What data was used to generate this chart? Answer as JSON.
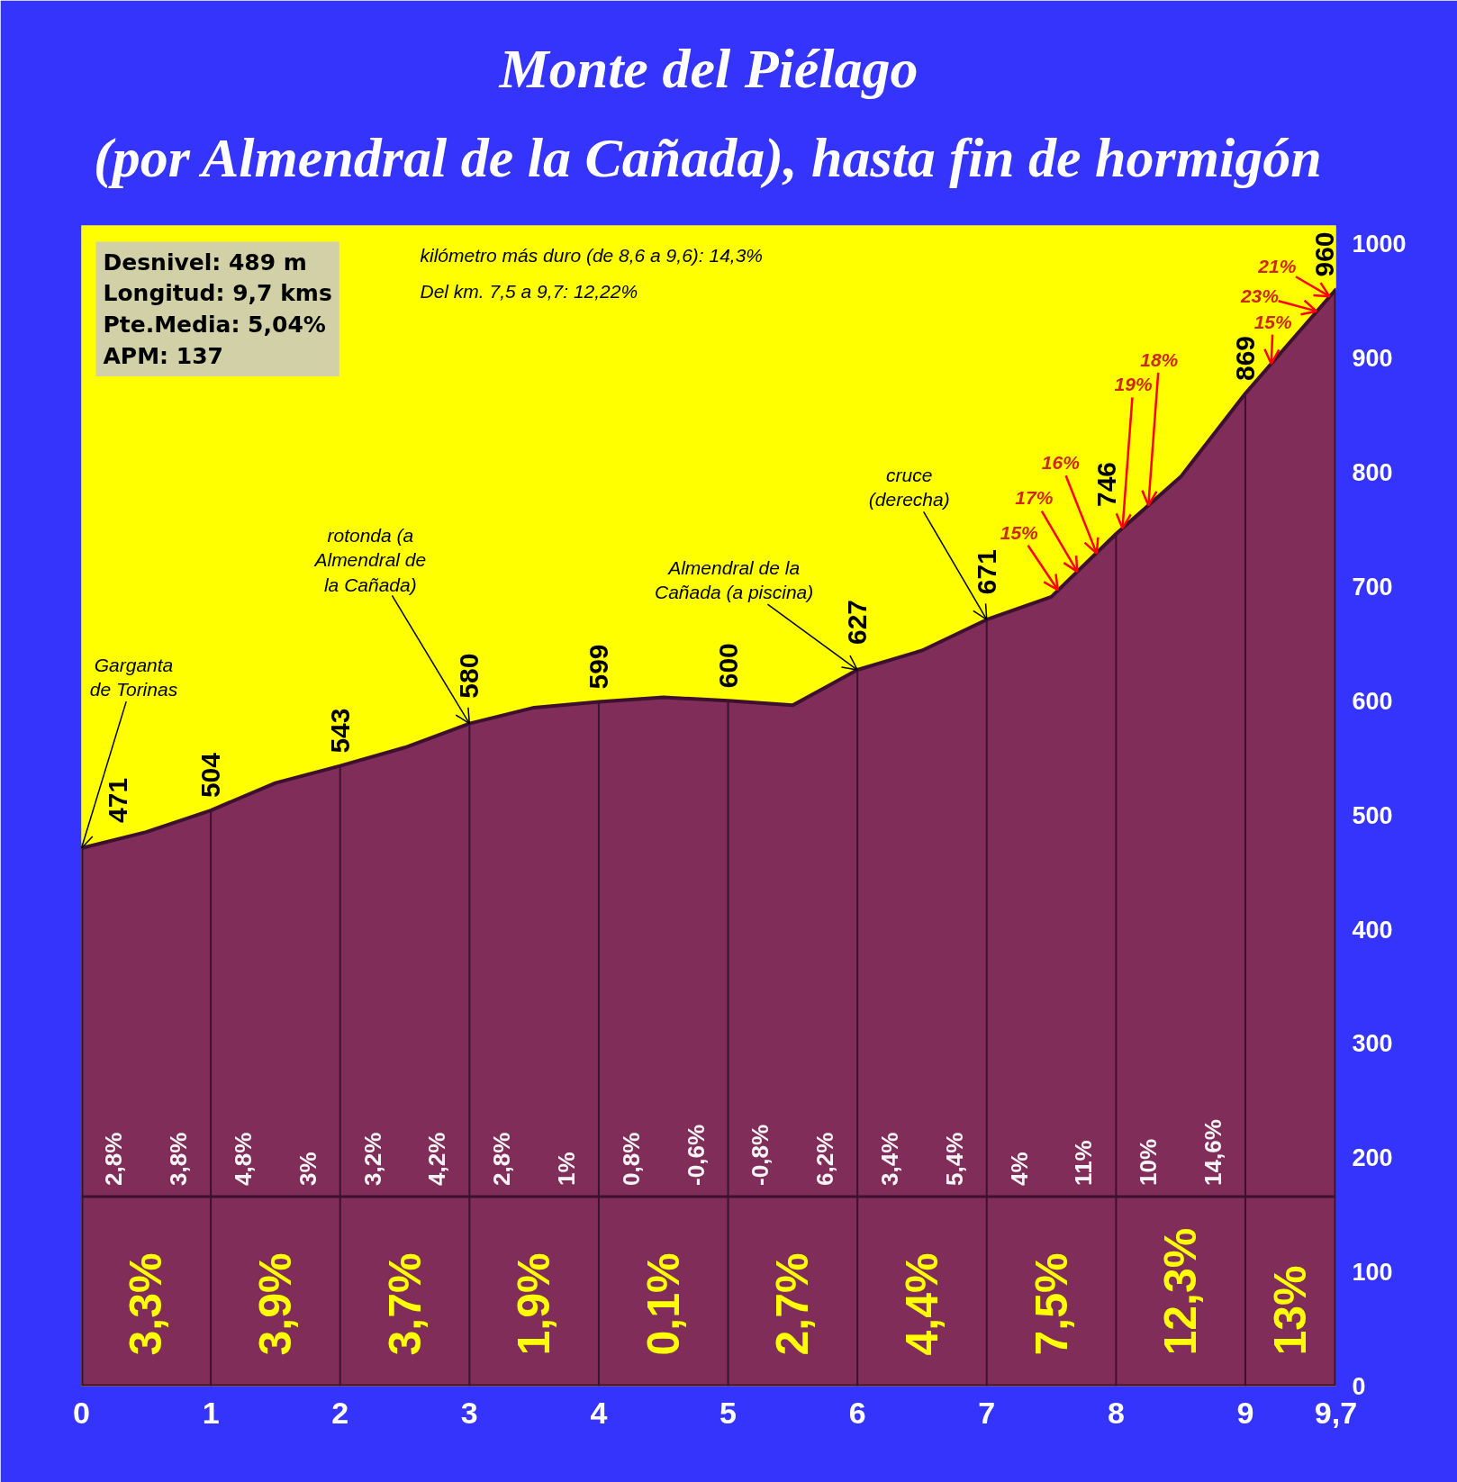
{
  "chart_data": {
    "type": "area",
    "title": "Monte del Piélago",
    "subtitle": "(por Almendral de la Cañada), hasta fin de hormigón",
    "x": [
      0,
      0.5,
      1,
      1.5,
      2,
      2.5,
      3,
      3.5,
      4,
      4.5,
      5,
      5.5,
      6,
      6.5,
      7,
      7.5,
      8,
      8.5,
      9,
      9.7
    ],
    "series": [
      {
        "color": "#802d5a",
        "values": [
          471,
          485,
          504,
          528,
          543,
          559,
          580,
          594,
          599,
          603,
          600,
          596,
          627,
          644,
          671,
          691,
          746,
          796,
          869,
          960
        ],
        "value_labels": [
          "471",
          null,
          "504",
          null,
          "543",
          null,
          "580",
          null,
          "599",
          null,
          "600",
          null,
          "627",
          null,
          "671",
          null,
          "746",
          null,
          "869",
          "960"
        ]
      }
    ],
    "xlim": [
      0,
      9.7
    ],
    "xticks": [
      0,
      1,
      2,
      3,
      4,
      5,
      6,
      7,
      8,
      9,
      {
        "value": 9.7,
        "label": "9,7"
      }
    ],
    "ylim": [
      0,
      1016
    ],
    "yticks": [
      0,
      100,
      200,
      300,
      400,
      500,
      600,
      700,
      800,
      900,
      1000
    ],
    "ref_lines": [
      {
        "axis": "y",
        "value": 166,
        "color": "#3d1030"
      }
    ],
    "annotations": [
      "Desnivel: 489 m\nLongitud: 9,7 kms\nPte.Media: 5,04%\nAPM: 137",
      "kilómetro más duro (de 8,6 a 9,6): 14,3%",
      "Del km. 7,5 a 9,7: 12,22%",
      "2,8%",
      "3,8%",
      "4,8%",
      "3%",
      "3,2%",
      "4,2%",
      "2,8%",
      "1%",
      "0,8%",
      "-0,6%",
      "-0,8%",
      "6,2%",
      "3,4%",
      "5,4%",
      "4%",
      "11%",
      "10%",
      "14,6%",
      "3,3%",
      "3,9%",
      "3,7%",
      "1,9%",
      "0,1%",
      "2,7%",
      "4,4%",
      "7,5%",
      "12,3%",
      "13%",
      {
        "text": "Garganta de Torinas",
        "x": 0,
        "y": 471
      },
      {
        "text": "rotonda (a Almendral de la Cañada)",
        "x": 3,
        "y": 580
      },
      {
        "text": "Almendral de la Cañada (a piscina)",
        "x": 6,
        "y": 627
      },
      {
        "text": "cruce (derecha)",
        "x": 7,
        "y": 671
      },
      {
        "text": "15%",
        "x": 7.55,
        "y": 697
      },
      {
        "text": "17%",
        "x": 7.7,
        "y": 713
      },
      {
        "text": "16%",
        "x": 7.85,
        "y": 729
      },
      {
        "text": "19%",
        "x": 8.05,
        "y": 751
      },
      {
        "text": "18%",
        "x": 8.25,
        "y": 771
      },
      {
        "text": "15%",
        "x": 9.2,
        "y": 895
      },
      {
        "text": "23%",
        "x": 9.55,
        "y": 941
      },
      {
        "text": "21%",
        "x": 9.65,
        "y": 954
      }
    ]
  }
}
